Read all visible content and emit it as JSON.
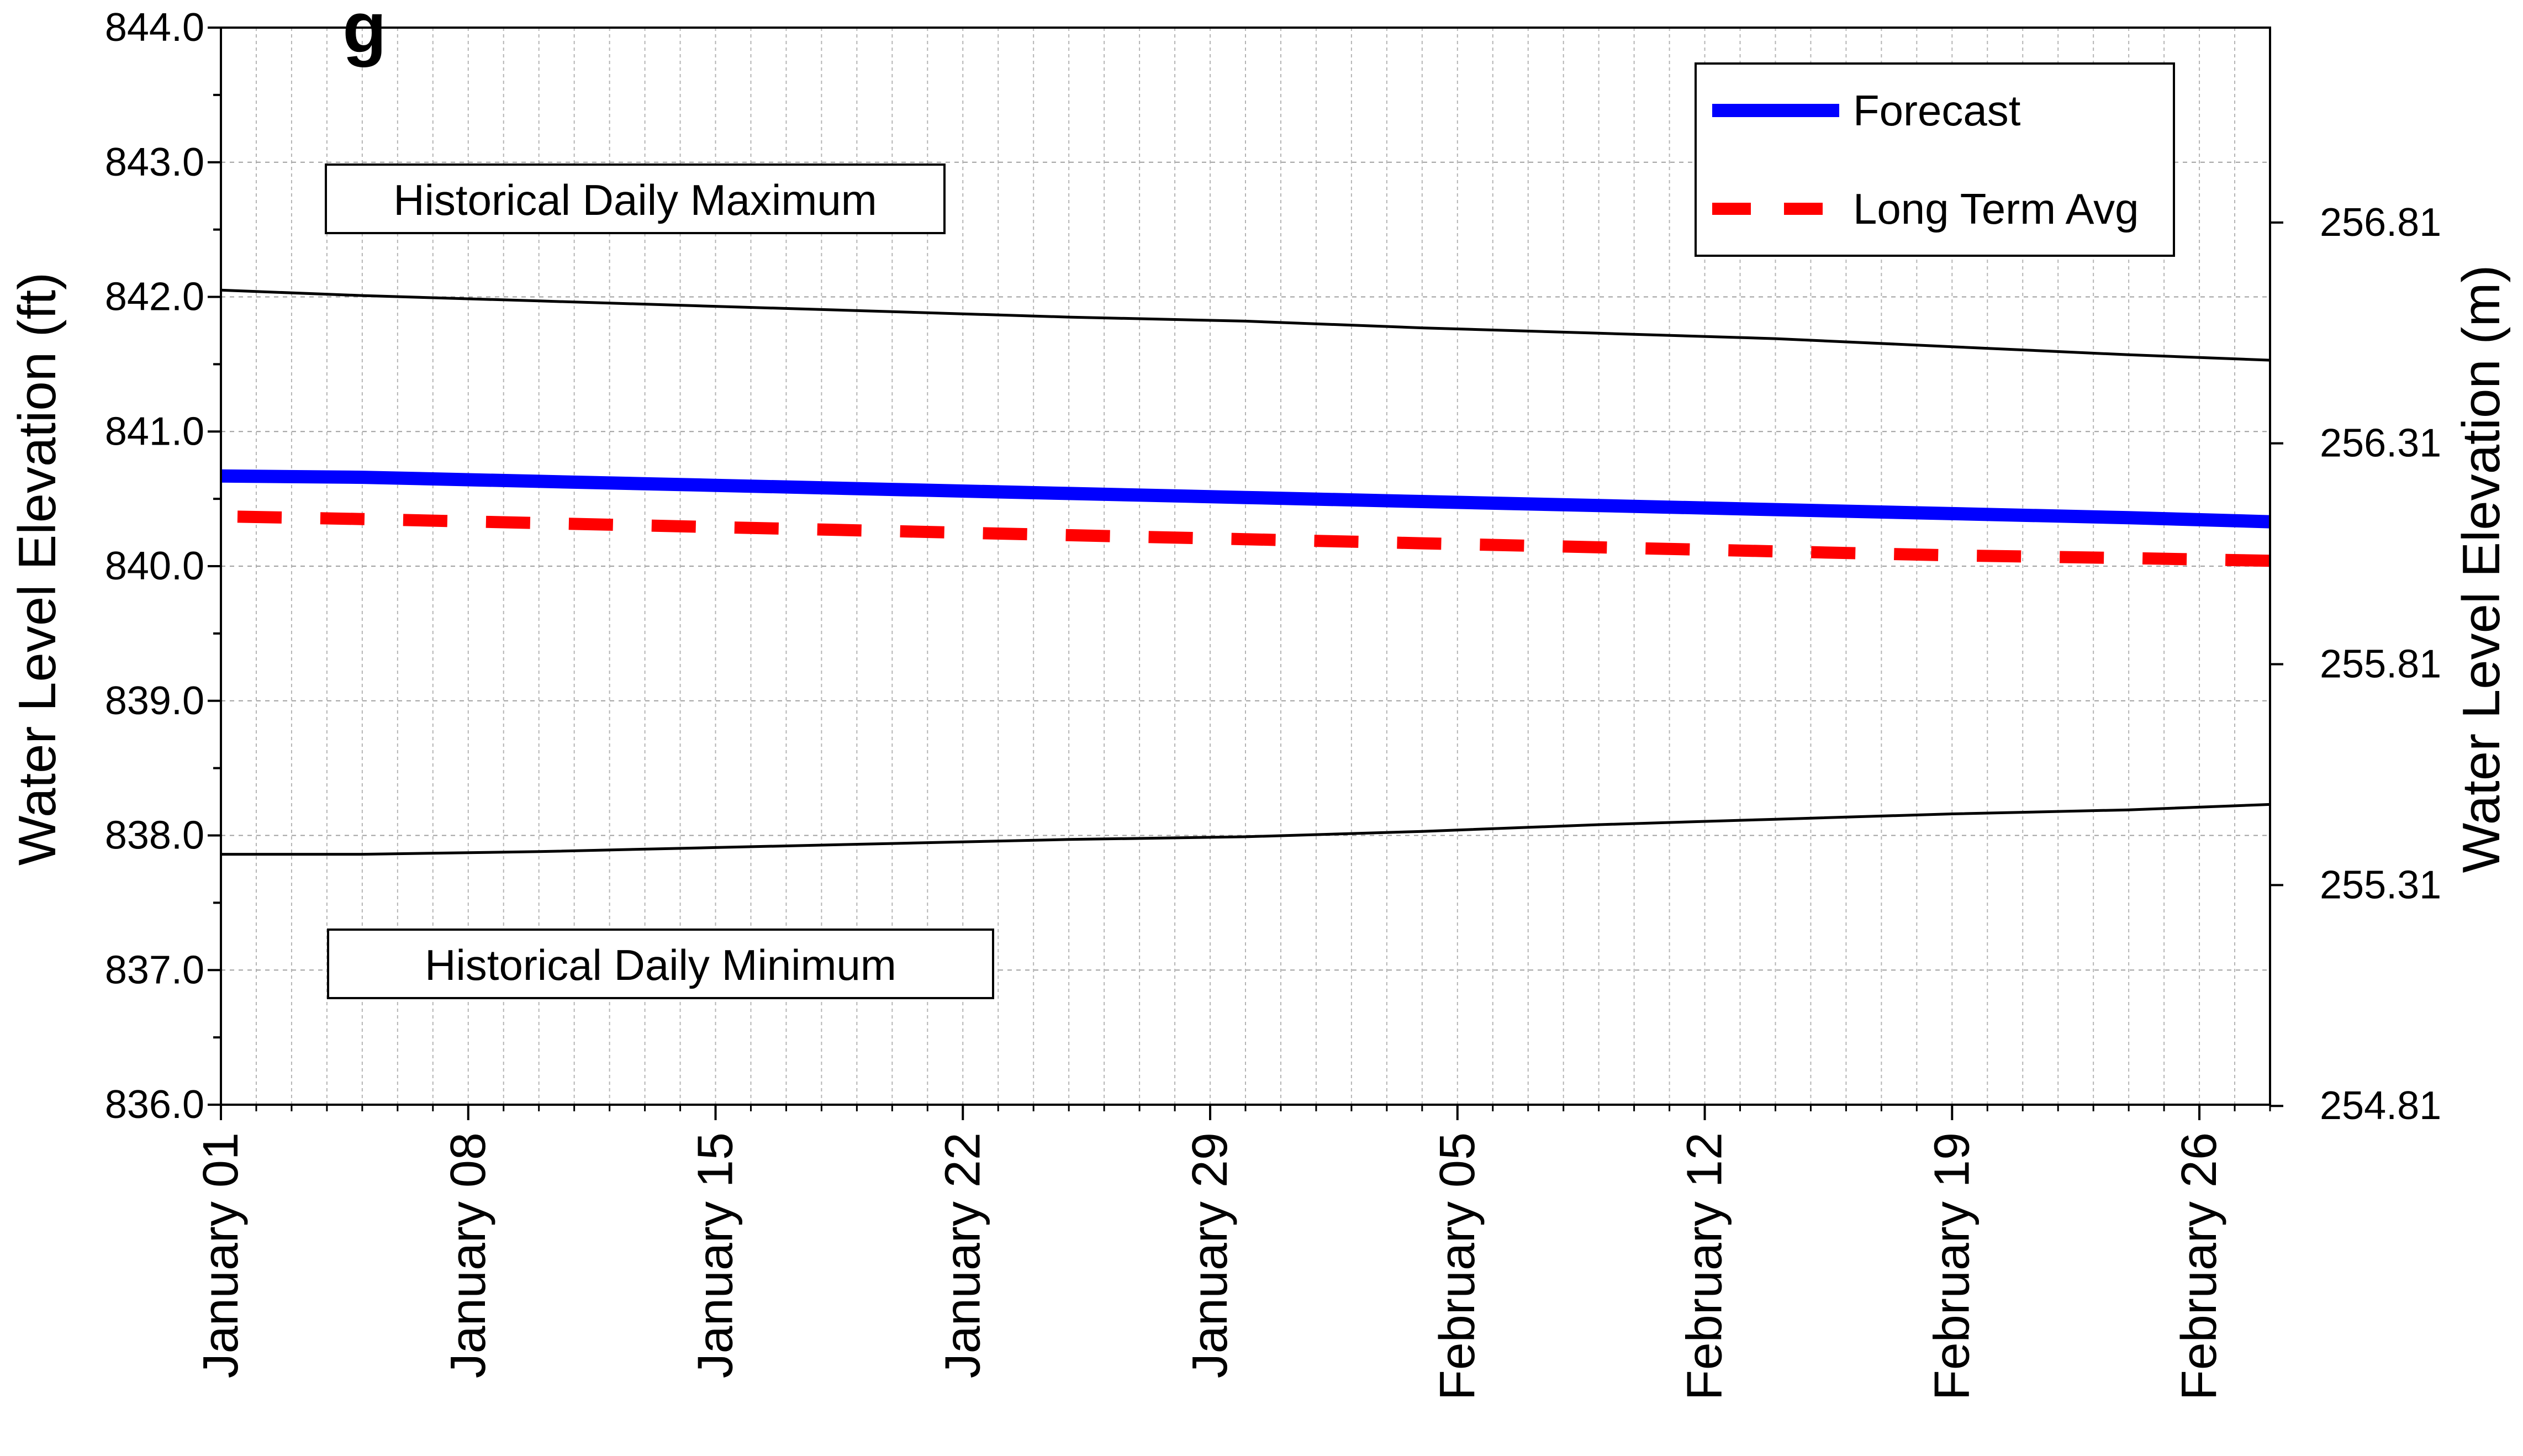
{
  "chart_data": {
    "type": "line",
    "title": "g",
    "ylabel": "Water Level Elevation (ft)",
    "y2label": "Water Level Elevation (m)",
    "ylim": [
      836.0,
      844.0
    ],
    "y_ticks": [
      "836.0",
      "837.0",
      "838.0",
      "839.0",
      "840.0",
      "841.0",
      "842.0",
      "843.0",
      "844.0"
    ],
    "y2_ticks": [
      "254.81",
      "255.31",
      "255.81",
      "256.31",
      "256.81"
    ],
    "x_start": "January 01",
    "x_ticks": [
      "January 01",
      "January 08",
      "January 15",
      "January 22",
      "January 29",
      "February 05",
      "February 12",
      "February 19",
      "February 26"
    ],
    "x": [
      "Jan 01",
      "Jan 05",
      "Jan 10",
      "Jan 15",
      "Jan 20",
      "Jan 25",
      "Jan 30",
      "Feb 04",
      "Feb 09",
      "Feb 14",
      "Feb 19",
      "Feb 24",
      "Feb 28"
    ],
    "grid": true,
    "legend_position": "top-right",
    "series": [
      {
        "name": "Forecast",
        "color": "#0000ff",
        "style": "solid",
        "values": [
          840.67,
          840.66,
          840.63,
          840.6,
          840.57,
          840.54,
          840.51,
          840.48,
          840.45,
          840.42,
          840.39,
          840.36,
          840.33
        ]
      },
      {
        "name": "Long Term Avg",
        "color": "#ff0000",
        "style": "dashed",
        "values": [
          840.37,
          840.35,
          840.32,
          840.29,
          840.26,
          840.23,
          840.2,
          840.17,
          840.14,
          840.11,
          840.08,
          840.06,
          840.04
        ]
      },
      {
        "name": "Historical Daily Maximum",
        "color": "#000000",
        "style": "thin",
        "values": [
          842.05,
          842.01,
          841.97,
          841.93,
          841.89,
          841.85,
          841.82,
          841.77,
          841.73,
          841.69,
          841.63,
          841.57,
          841.53
        ]
      },
      {
        "name": "Historical Daily Minimum",
        "color": "#000000",
        "style": "thin",
        "values": [
          837.86,
          837.86,
          837.88,
          837.91,
          837.94,
          837.97,
          837.99,
          838.03,
          838.08,
          838.12,
          838.16,
          838.19,
          838.23
        ]
      }
    ],
    "annotations": [
      "Historical Daily Maximum",
      "Historical Daily Minimum"
    ]
  }
}
